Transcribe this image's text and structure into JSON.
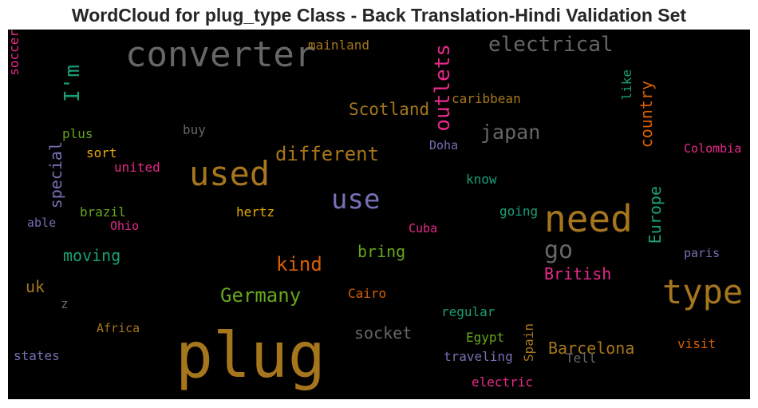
{
  "chart_data": {
    "type": "wordcloud",
    "title": "WordCloud for plug_type Class - Back Translation-Hindi Validation Set",
    "background": "#000000",
    "words": [
      {
        "text": "plug",
        "color": "#a6761d",
        "vertical": false
      },
      {
        "text": "converter",
        "color": "#666666",
        "vertical": false
      },
      {
        "text": "need",
        "color": "#a6761d",
        "vertical": false
      },
      {
        "text": "type",
        "color": "#a6761d",
        "vertical": false
      },
      {
        "text": "used",
        "color": "#a6761d",
        "vertical": false
      },
      {
        "text": "use",
        "color": "#7570b3",
        "vertical": false
      },
      {
        "text": "electrical",
        "color": "#666666",
        "vertical": false
      },
      {
        "text": "I'm",
        "color": "#1b9e77",
        "vertical": true
      },
      {
        "text": "outlets",
        "color": "#e7298a",
        "vertical": true
      },
      {
        "text": "different",
        "color": "#a6761d",
        "vertical": false
      },
      {
        "text": "japan",
        "color": "#666666",
        "vertical": false
      },
      {
        "text": "go",
        "color": "#666666",
        "vertical": false
      },
      {
        "text": "Germany",
        "color": "#66a61e",
        "vertical": false
      },
      {
        "text": "kind",
        "color": "#d95f02",
        "vertical": false
      },
      {
        "text": "Scotland",
        "color": "#a6761d",
        "vertical": false
      },
      {
        "text": "country",
        "color": "#d95f02",
        "vertical": true
      },
      {
        "text": "Europe",
        "color": "#1b9e77",
        "vertical": true
      },
      {
        "text": "Barcelona",
        "color": "#a6761d",
        "vertical": false
      },
      {
        "text": "British",
        "color": "#e7298a",
        "vertical": false
      },
      {
        "text": "socket",
        "color": "#666666",
        "vertical": false
      },
      {
        "text": "special",
        "color": "#7570b3",
        "vertical": true
      },
      {
        "text": "moving",
        "color": "#1b9e77",
        "vertical": false
      },
      {
        "text": "bring",
        "color": "#66a61e",
        "vertical": false
      },
      {
        "text": "uk",
        "color": "#a6761d",
        "vertical": false
      },
      {
        "text": "mainland",
        "color": "#a6761d",
        "vertical": false
      },
      {
        "text": "caribbean",
        "color": "#a6761d",
        "vertical": false
      },
      {
        "text": "like",
        "color": "#1b9e77",
        "vertical": true
      },
      {
        "text": "soccer",
        "color": "#e7298a",
        "vertical": true
      },
      {
        "text": "plus",
        "color": "#66a61e",
        "vertical": false
      },
      {
        "text": "buy",
        "color": "#666666",
        "vertical": false
      },
      {
        "text": "sort",
        "color": "#e6ab02",
        "vertical": false
      },
      {
        "text": "united",
        "color": "#e7298a",
        "vertical": false
      },
      {
        "text": "Doha",
        "color": "#7570b3",
        "vertical": false
      },
      {
        "text": "Colombia",
        "color": "#e7298a",
        "vertical": false
      },
      {
        "text": "know",
        "color": "#1b9e77",
        "vertical": false
      },
      {
        "text": "brazil",
        "color": "#66a61e",
        "vertical": false
      },
      {
        "text": "hertz",
        "color": "#e6ab02",
        "vertical": false
      },
      {
        "text": "able",
        "color": "#7570b3",
        "vertical": false
      },
      {
        "text": "Ohio",
        "color": "#e7298a",
        "vertical": false
      },
      {
        "text": "going",
        "color": "#1b9e77",
        "vertical": false
      },
      {
        "text": "Cuba",
        "color": "#e7298a",
        "vertical": false
      },
      {
        "text": "paris",
        "color": "#7570b3",
        "vertical": false
      },
      {
        "text": "z",
        "color": "#666666",
        "vertical": false
      },
      {
        "text": "Cairo",
        "color": "#d95f02",
        "vertical": false
      },
      {
        "text": "regular",
        "color": "#1b9e77",
        "vertical": false
      },
      {
        "text": "Africa",
        "color": "#a6761d",
        "vertical": false
      },
      {
        "text": "Egypt",
        "color": "#66a61e",
        "vertical": false
      },
      {
        "text": "Spain",
        "color": "#a6761d",
        "vertical": true
      },
      {
        "text": "visit",
        "color": "#d95f02",
        "vertical": false
      },
      {
        "text": "states",
        "color": "#7570b3",
        "vertical": false
      },
      {
        "text": "traveling",
        "color": "#7570b3",
        "vertical": false
      },
      {
        "text": "Tell",
        "color": "#666666",
        "vertical": false
      },
      {
        "text": "electric",
        "color": "#e7298a",
        "vertical": false
      }
    ]
  }
}
